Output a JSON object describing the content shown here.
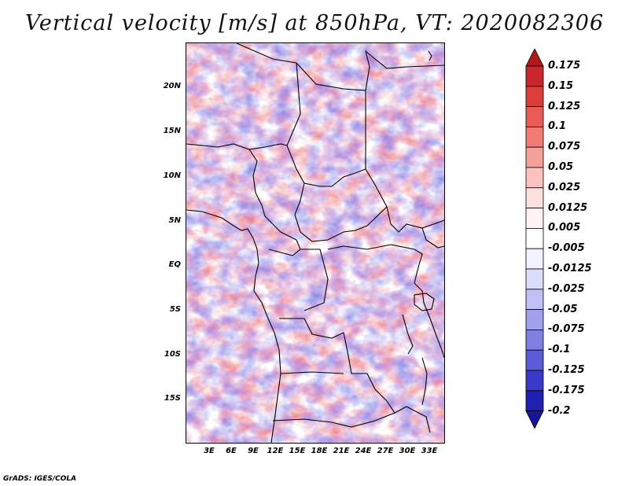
{
  "title": "Vertical velocity [m/s] at 850hPa, VT: 2020082306",
  "credit": "GrADS: IGES/COLA",
  "map": {
    "lat_labels": [
      "20N",
      "15N",
      "10N",
      "5N",
      "EQ",
      "5S",
      "10S",
      "15S"
    ],
    "lon_labels": [
      "3E",
      "6E",
      "9E",
      "12E",
      "15E",
      "18E",
      "21E",
      "24E",
      "27E",
      "30E",
      "33E"
    ]
  },
  "colorbar": {
    "labels": [
      "0.175",
      "0.15",
      "0.125",
      "0.1",
      "0.075",
      "0.05",
      "0.025",
      "0.0125",
      "0.005",
      "-0.005",
      "-0.0125",
      "-0.025",
      "-0.05",
      "-0.075",
      "-0.1",
      "-0.125",
      "-0.175",
      "-0.2"
    ],
    "colors": [
      "#b0181e",
      "#c8282b",
      "#dc3c3a",
      "#e85a55",
      "#f07c74",
      "#f6a09a",
      "#fac3bf",
      "#fde0de",
      "#fff4f3",
      "#ffffff",
      "#f1f1ff",
      "#dcdcfb",
      "#c0c0f4",
      "#a0a0ec",
      "#8080e2",
      "#5c5cd6",
      "#3a3ac8",
      "#2020b0",
      "#16169a"
    ]
  }
}
